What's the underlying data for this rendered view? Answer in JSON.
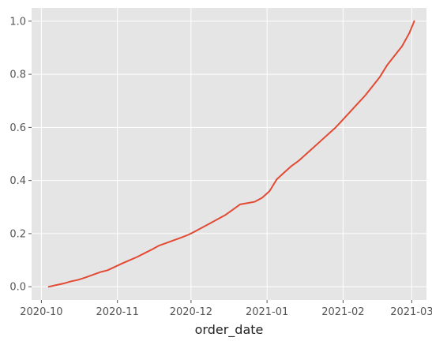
{
  "chart_data": {
    "type": "line",
    "title": "",
    "xlabel": "order_date",
    "ylabel": "",
    "x_axis_type": "date",
    "xlim": [
      "2020-09-27",
      "2021-03-07"
    ],
    "ylim": [
      -0.05,
      1.05
    ],
    "x_ticks": [
      {
        "value": "2020-10-01",
        "label": "2020-10"
      },
      {
        "value": "2020-11-01",
        "label": "2020-11"
      },
      {
        "value": "2020-12-01",
        "label": "2020-12"
      },
      {
        "value": "2021-01-01",
        "label": "2021-01"
      },
      {
        "value": "2021-02-01",
        "label": "2021-02"
      },
      {
        "value": "2021-03-01",
        "label": "2021-03"
      }
    ],
    "y_ticks": [
      {
        "value": 0.0,
        "label": "0.0"
      },
      {
        "value": 0.2,
        "label": "0.2"
      },
      {
        "value": 0.4,
        "label": "0.4"
      },
      {
        "value": 0.6,
        "label": "0.6"
      },
      {
        "value": 0.8,
        "label": "0.8"
      },
      {
        "value": 1.0,
        "label": "1.0"
      }
    ],
    "grid": true,
    "style": "ggplot",
    "background_color": "#e5e5e5",
    "grid_color": "#ffffff",
    "series": [
      {
        "color": "#e24a33",
        "x": [
          "2020-10-04",
          "2020-10-07",
          "2020-10-10",
          "2020-10-13",
          "2020-10-16",
          "2020-10-19",
          "2020-10-22",
          "2020-10-25",
          "2020-10-28",
          "2020-10-31",
          "2020-11-03",
          "2020-11-06",
          "2020-11-09",
          "2020-11-12",
          "2020-11-15",
          "2020-11-18",
          "2020-11-21",
          "2020-11-24",
          "2020-11-27",
          "2020-11-30",
          "2020-12-03",
          "2020-12-06",
          "2020-12-09",
          "2020-12-12",
          "2020-12-15",
          "2020-12-18",
          "2020-12-21",
          "2020-12-24",
          "2020-12-27",
          "2020-12-30",
          "2021-01-02",
          "2021-01-05",
          "2021-01-08",
          "2021-01-11",
          "2021-01-14",
          "2021-01-17",
          "2021-01-20",
          "2021-01-23",
          "2021-01-26",
          "2021-01-29",
          "2021-02-01",
          "2021-02-04",
          "2021-02-07",
          "2021-02-10",
          "2021-02-13",
          "2021-02-16",
          "2021-02-19",
          "2021-02-22",
          "2021-02-25",
          "2021-02-28",
          "2021-03-02"
        ],
        "values": [
          0.0,
          0.006,
          0.012,
          0.02,
          0.026,
          0.035,
          0.045,
          0.055,
          0.062,
          0.075,
          0.088,
          0.1,
          0.112,
          0.126,
          0.14,
          0.155,
          0.165,
          0.175,
          0.185,
          0.196,
          0.21,
          0.225,
          0.24,
          0.255,
          0.27,
          0.29,
          0.31,
          0.315,
          0.32,
          0.335,
          0.36,
          0.405,
          0.43,
          0.455,
          0.475,
          0.5,
          0.525,
          0.55,
          0.575,
          0.6,
          0.63,
          0.66,
          0.69,
          0.72,
          0.755,
          0.79,
          0.835,
          0.87,
          0.905,
          0.955,
          1.0
        ]
      }
    ]
  }
}
